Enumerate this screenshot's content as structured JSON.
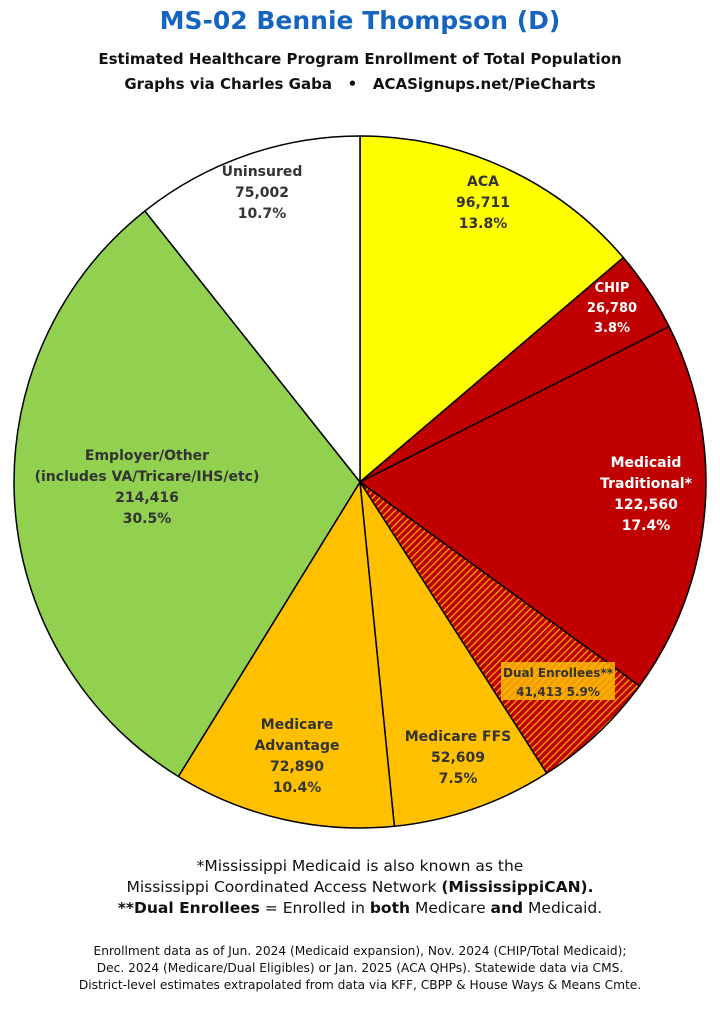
{
  "header": {
    "title": "MS-02 Bennie Thompson (D)",
    "subtitle": "Estimated Healthcare Program Enrollment of Total Population",
    "credit": "Graphs via Charles Gaba   •   ACASignups.net/PieCharts"
  },
  "chart_data": {
    "type": "pie",
    "slices": [
      {
        "label": [
          "ACA"
        ],
        "value": 96711,
        "value_text": "96,711",
        "percent": "13.8%",
        "color": "#ffff00",
        "text_color": "#333333"
      },
      {
        "label": [
          "CHIP"
        ],
        "value": 26780,
        "value_text": "26,780",
        "percent": "3.8%",
        "color": "#c00000",
        "text_color": "#ffffff"
      },
      {
        "label": [
          "Medicaid",
          "Traditional*"
        ],
        "value": 122560,
        "value_text": "122,560",
        "percent": "17.4%",
        "color": "#c00000",
        "text_color": "#ffffff"
      },
      {
        "label": [
          "Dual Enrollees**"
        ],
        "value": 41413,
        "value_text": "41,413",
        "percent": "5.9%",
        "color": "#c00000",
        "hatch": "#ffc000",
        "text_color": "#333333"
      },
      {
        "label": [
          "Medicare FFS"
        ],
        "value": 52609,
        "value_text": "52,609",
        "percent": "7.5%",
        "color": "#ffc000",
        "text_color": "#333333"
      },
      {
        "label": [
          "Medicare",
          "Advantage"
        ],
        "value": 72890,
        "value_text": "72,890",
        "percent": "10.4%",
        "color": "#ffc000",
        "text_color": "#333333"
      },
      {
        "label": [
          "Employer/Other",
          "(includes VA/Tricare/IHS/etc)"
        ],
        "value": 214416,
        "value_text": "214,416",
        "percent": "30.5%",
        "color": "#92d050",
        "text_color": "#333333"
      },
      {
        "label": [
          "Uninsured"
        ],
        "value": 75002,
        "value_text": "75,002",
        "percent": "10.7%",
        "color": "#ffffff",
        "text_color": "#333333"
      }
    ]
  },
  "footnotes": {
    "line1": "*Mississippi Medicaid is also known as the",
    "line2_a": "Mississippi Coordinated Access Network ",
    "line2_b": "(MississippiCAN).",
    "line3_a": "**Dual Enrollees",
    "line3_b": " = Enrolled in ",
    "line3_c": "both",
    "line3_d": " Medicare ",
    "line3_e": "and",
    "line3_f": " Medicaid."
  },
  "sources": {
    "line1": "Enrollment data as of Jun. 2024 (Medicaid expansion), Nov. 2024 (CHIP/Total Medicaid);",
    "line2": "Dec. 2024 (Medicare/Dual Eligibles) or Jan. 2025 (ACA QHPs). Statewide data via CMS.",
    "line3": "District-level estimates extrapolated from data via KFF, CBPP & House Ways & Means Cmte."
  }
}
